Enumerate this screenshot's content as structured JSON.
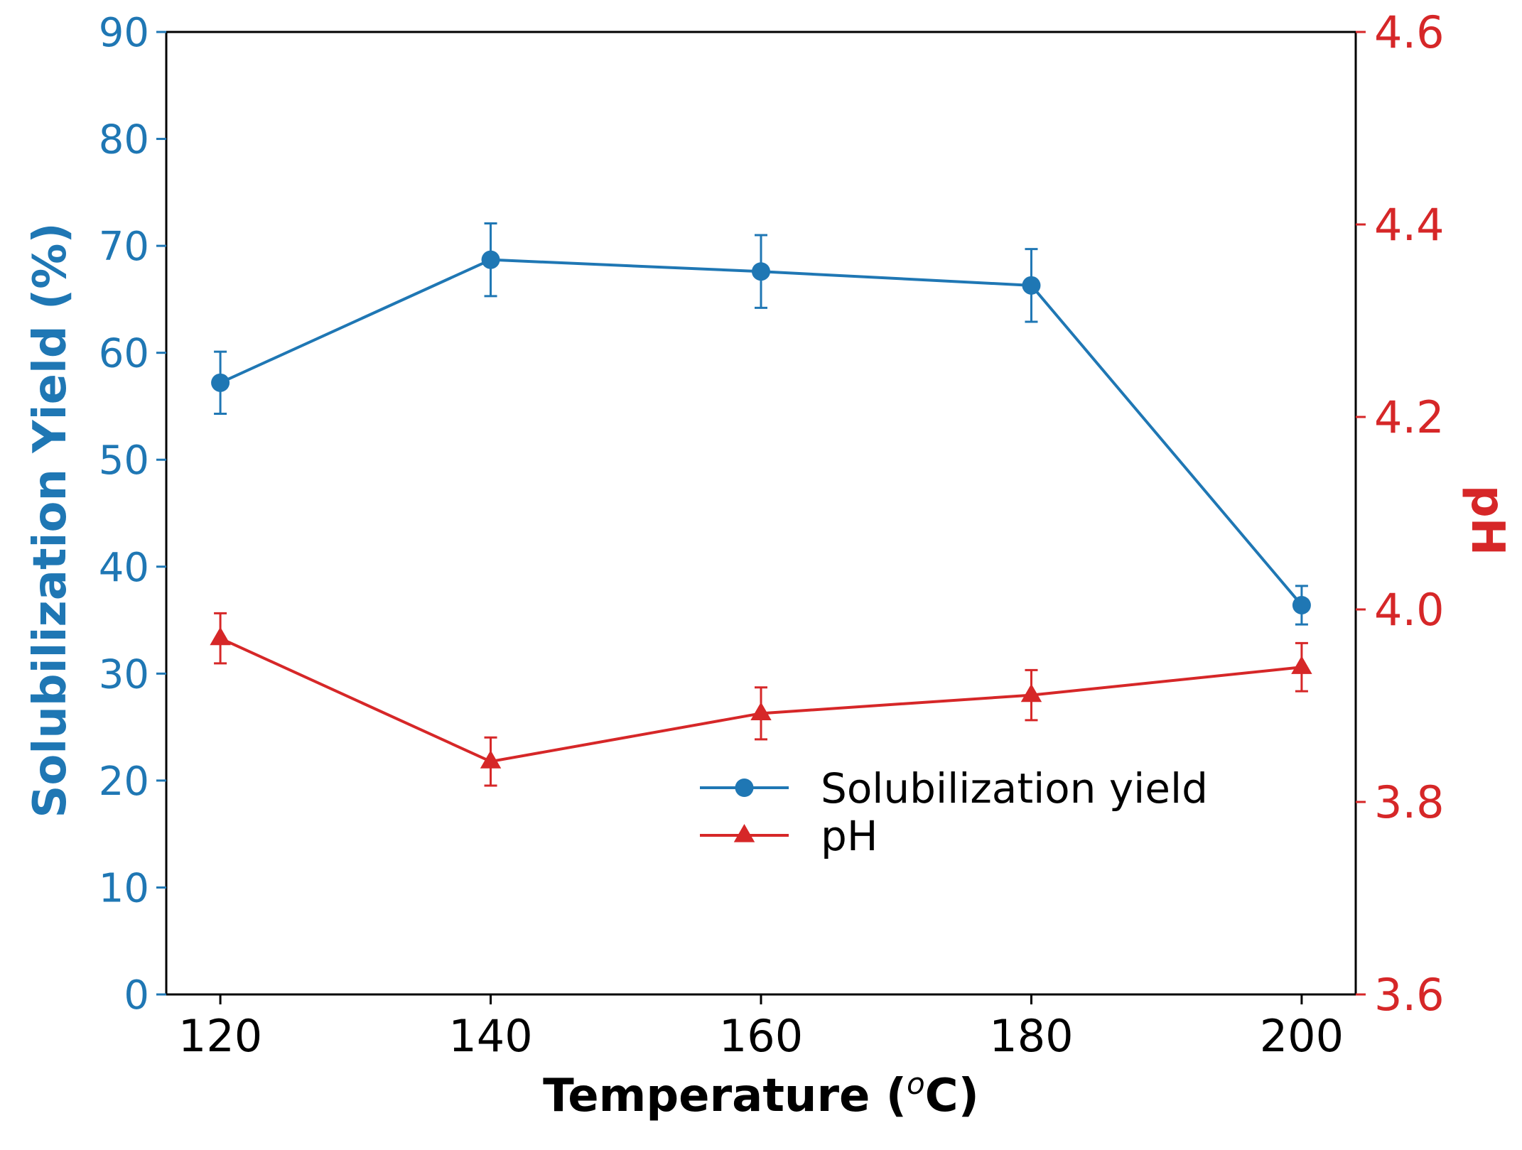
{
  "colors": {
    "yield": "#1f77b4",
    "ph": "#d62728",
    "axis": "#000000",
    "background": "#ffffff"
  },
  "chart_data": {
    "type": "line",
    "title": "",
    "xlabel_main": "Temperature (",
    "xlabel_sup": "o",
    "xlabel_end": "C)",
    "x": [
      120,
      140,
      160,
      180,
      200
    ],
    "xlim": [
      116,
      204
    ],
    "xticks": [
      "120",
      "140",
      "160",
      "180",
      "200"
    ],
    "left_axis": {
      "label": "Solubilization Yield (%)",
      "ylim": [
        0,
        90
      ],
      "ticks": [
        "0",
        "10",
        "20",
        "30",
        "40",
        "50",
        "60",
        "70",
        "80",
        "90"
      ]
    },
    "right_axis": {
      "label": "pH",
      "ylim": [
        3.6,
        4.6
      ],
      "ticks": [
        "3.6",
        "3.8",
        "4.0",
        "4.2",
        "4.4",
        "4.6"
      ]
    },
    "series": [
      {
        "name": "Solubilization yield",
        "axis": "left",
        "marker": "circle",
        "values": [
          57.2,
          68.7,
          67.6,
          66.3,
          36.4
        ],
        "errors": [
          2.9,
          3.4,
          3.4,
          3.4,
          1.8
        ]
      },
      {
        "name": "pH",
        "axis": "right",
        "marker": "triangle",
        "values": [
          3.97,
          3.842,
          3.892,
          3.911,
          3.94
        ],
        "errors": [
          0.026,
          0.025,
          0.027,
          0.026,
          0.025
        ]
      }
    ],
    "legend": {
      "position": "lower-center",
      "entries": [
        "Solubilization yield",
        "pH"
      ]
    },
    "grid": false
  }
}
